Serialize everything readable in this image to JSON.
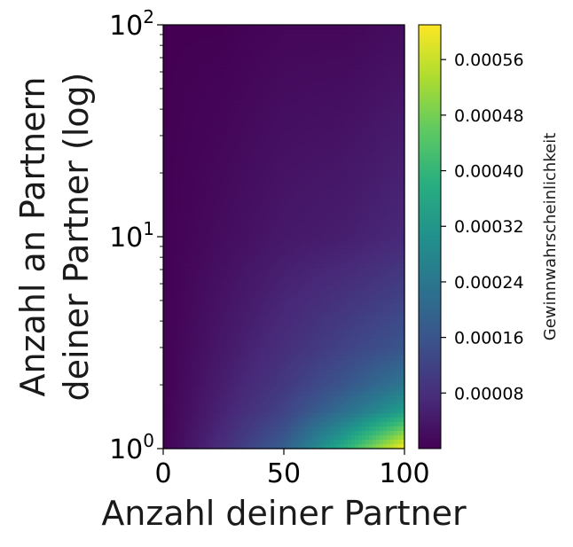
{
  "chart_data": {
    "type": "heatmap",
    "title": "",
    "xlabel": "Anzahl deiner Partner",
    "ylabel_lines": [
      "Anzahl an Partnern",
      "deiner Partner (log)"
    ],
    "x_range": [
      0,
      100
    ],
    "x_ticks": [
      {
        "value": 0,
        "label": "0"
      },
      {
        "value": 50,
        "label": "50"
      },
      {
        "value": 100,
        "label": "100"
      }
    ],
    "y_scale": "log",
    "y_range": [
      1,
      100
    ],
    "y_ticks": [
      {
        "value": 1,
        "base": "10",
        "exp": "0"
      },
      {
        "value": 10,
        "base": "10",
        "exp": "1"
      },
      {
        "value": 100,
        "base": "10",
        "exp": "2"
      }
    ],
    "colormap": "viridis",
    "colorbar": {
      "label": "Gewinnwahrscheinlichkeit",
      "range": [
        0,
        0.00061
      ],
      "ticks": [
        {
          "value": 8e-05,
          "label": "0.00008"
        },
        {
          "value": 0.00016,
          "label": "0.00016"
        },
        {
          "value": 0.00024,
          "label": "0.00024"
        },
        {
          "value": 0.00032,
          "label": "0.00032"
        },
        {
          "value": 0.0004,
          "label": "0.00040"
        },
        {
          "value": 0.00048,
          "label": "0.00048"
        },
        {
          "value": 0.00056,
          "label": "0.00056"
        }
      ]
    },
    "grid": false,
    "surface": {
      "x": [
        0,
        25,
        50,
        75,
        100
      ],
      "y": [
        1,
        1.5,
        2,
        3,
        10,
        100
      ],
      "z": [
        [
          0.0,
          8e-05,
          0.00018,
          0.00038,
          0.00061
        ],
        [
          0.0,
          6e-05,
          0.00012,
          0.00022,
          0.00034
        ],
        [
          0.0,
          5e-05,
          0.0001,
          0.00016,
          0.00024
        ],
        [
          0.0,
          4e-05,
          8e-05,
          0.00012,
          0.00016
        ],
        [
          0.0,
          2e-05,
          4e-05,
          5e-05,
          7e-05
        ],
        [
          0.0,
          0.0,
          1e-05,
          1e-05,
          2e-05
        ]
      ]
    }
  }
}
